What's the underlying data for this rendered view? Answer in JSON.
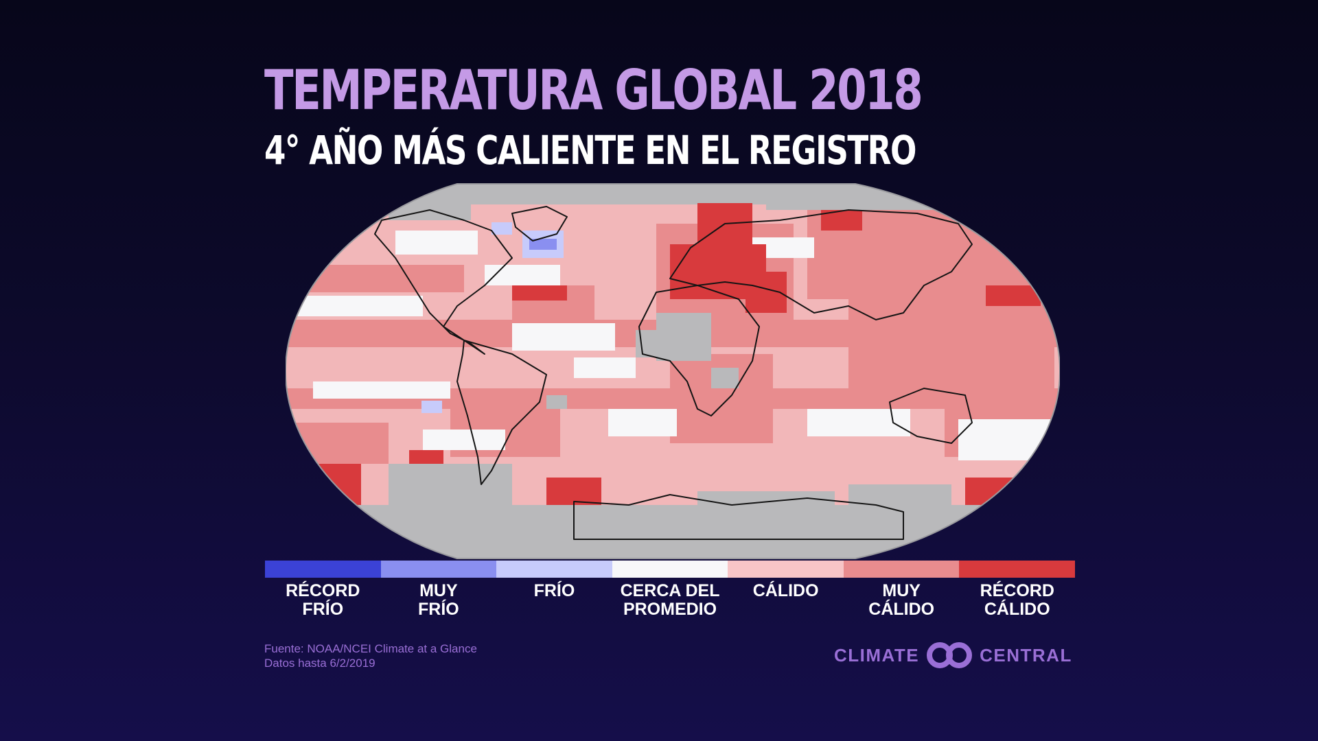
{
  "title": "TEMPERATURA GLOBAL 2018",
  "subtitle": "4° AÑO MÁS CALIENTE EN EL REGISTRO",
  "legend": [
    {
      "line1": "RÉCORD",
      "line2": "FRÍO",
      "color": "#3b42d6"
    },
    {
      "line1": "MUY",
      "line2": "FRÍO",
      "color": "#8a8ff0"
    },
    {
      "line1": "FRÍO",
      "line2": "",
      "color": "#c7cbfb"
    },
    {
      "line1": "CERCA DEL",
      "line2": "PROMEDIO",
      "color": "#f7f7f9"
    },
    {
      "line1": "CÁLIDO",
      "line2": "",
      "color": "#f7c5c7"
    },
    {
      "line1": "MUY",
      "line2": "CÁLIDO",
      "color": "#e88c8e"
    },
    {
      "line1": "RÉCORD",
      "line2": "CÁLIDO",
      "color": "#d83a3d"
    }
  ],
  "source_line1": "Fuente: NOAA/NCEI Climate at a Glance",
  "source_line2": "Datos hasta 6/2/2019",
  "logo_left": "CLIMATE",
  "logo_right": "CENTRAL",
  "colors": {
    "no_data": "#b9b9bb",
    "ocean_base": "#f2b7b9",
    "brand": "#9a6fd6"
  }
}
